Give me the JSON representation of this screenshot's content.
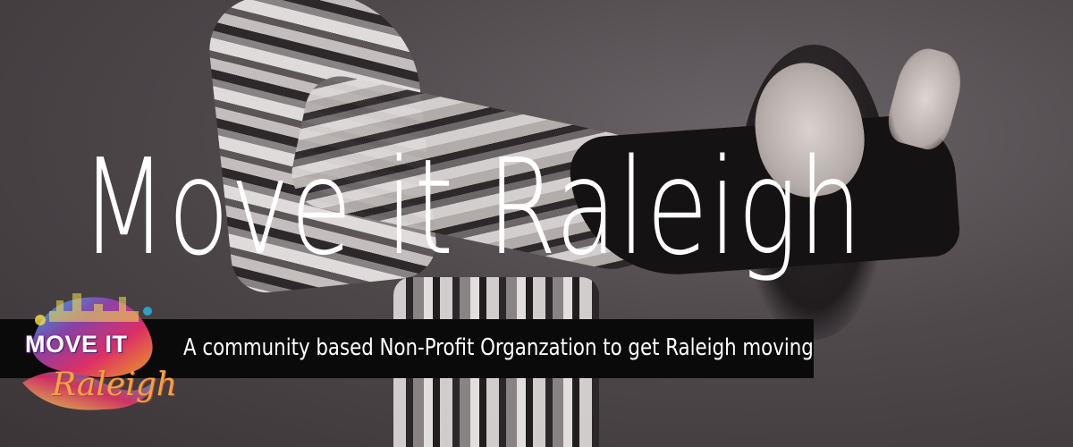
{
  "headline": "Move it Raleigh",
  "tagline": "A community based Non-Profit Organzation to get Raleigh moving",
  "logo": {
    "main_text": "MOVE IT",
    "script_text": "Raleigh",
    "colors": [
      "#e8316b",
      "#f5a623",
      "#27b6e8",
      "#8e44ad",
      "#f7e14a"
    ]
  },
  "colors": {
    "background": "#4f494c",
    "headline": "#ffffff",
    "tagline_bar": "#0b0a0b"
  }
}
